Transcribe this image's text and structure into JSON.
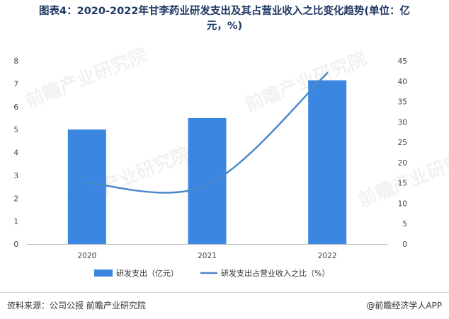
{
  "title_line1": "图表4：2020-2022年甘李药业研发支出及其占营业收入之比变化趋势(单位：亿",
  "title_line2": "元，%)",
  "chart_data": {
    "type": "bar",
    "categories": [
      "2020",
      "2021",
      "2022"
    ],
    "series": [
      {
        "name": "研发支出（亿元）",
        "type": "bar",
        "axis": "left",
        "values": [
          5.0,
          5.5,
          7.15
        ],
        "color": "#3a86e0"
      },
      {
        "name": "研发支出占营业收入之比（%）",
        "type": "line",
        "axis": "right",
        "values": [
          15.0,
          14.5,
          42.0
        ],
        "color": "#4a88c8"
      }
    ],
    "y_left": {
      "min": 0,
      "max": 8,
      "ticks": [
        0,
        1,
        2,
        3,
        4,
        5,
        6,
        7,
        8
      ]
    },
    "y_right": {
      "min": 0,
      "max": 45,
      "ticks": [
        0,
        5,
        10,
        15,
        20,
        25,
        30,
        35,
        40,
        45
      ]
    },
    "legend_position": "bottom",
    "grid": false
  },
  "watermark": "前瞻产业研究院",
  "footer": {
    "source": "资料来源：公司公报 前瞻产业研究院",
    "brand": "@前瞻经济学人APP"
  }
}
